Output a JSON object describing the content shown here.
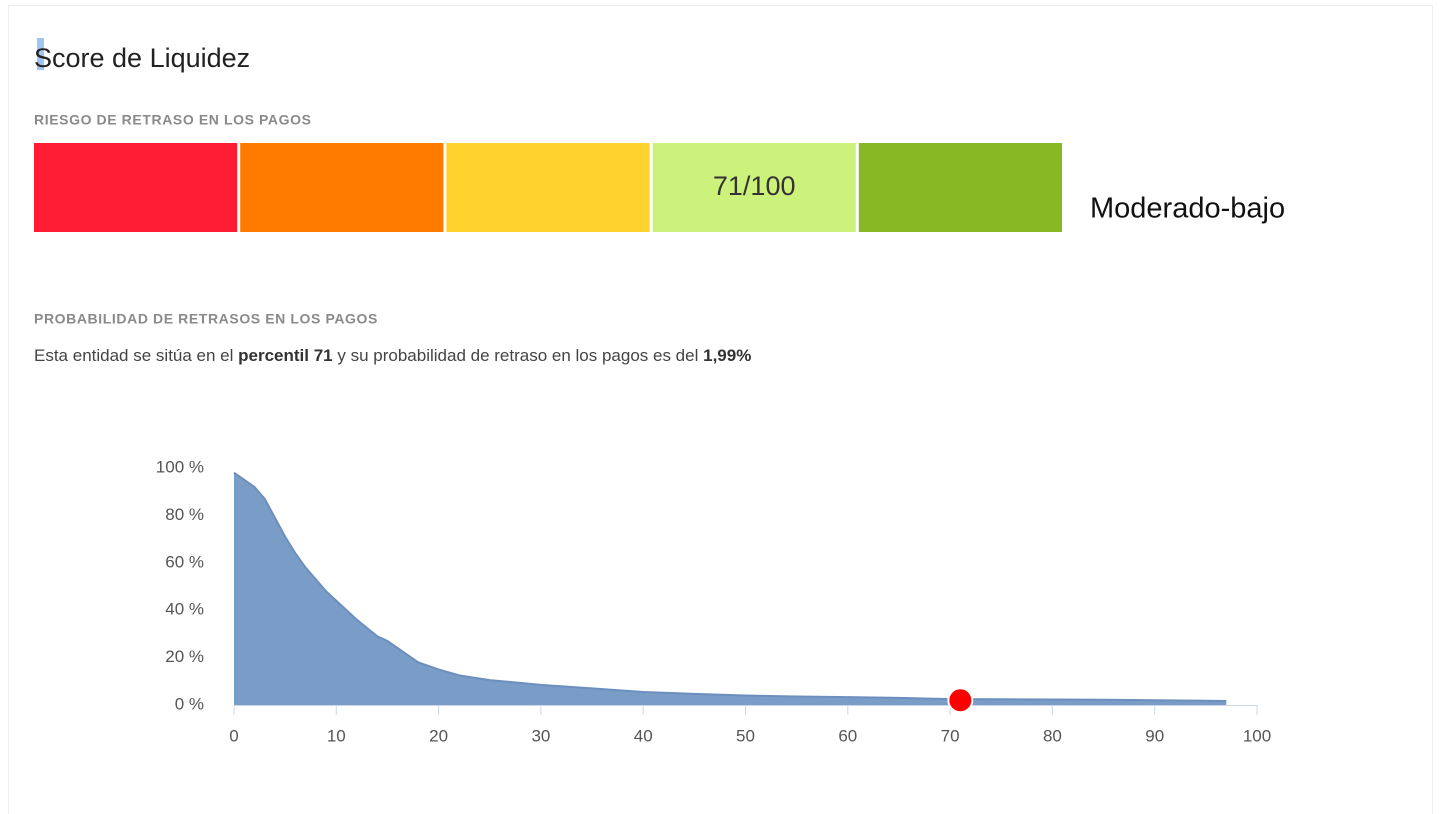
{
  "title": "Score de Liquidez",
  "risk": {
    "heading": "RIESGO DE RETRASO EN LOS PAGOS",
    "segments": [
      "#ff1c34",
      "#ff7b00",
      "#ffd22e",
      "#cdf27c",
      "#86b923"
    ],
    "score_label": "71/100",
    "score_segment": 3,
    "rating": "Moderado-bajo"
  },
  "probability": {
    "heading": "PROBABILIDAD DE RETRASOS EN LOS PAGOS",
    "sentence": [
      {
        "text": "Esta entidad se sitúa en el ",
        "bold": false
      },
      {
        "text": "percentil 71",
        "bold": true
      },
      {
        "text": " y su probabilidad de retraso en los pagos es del ",
        "bold": false
      },
      {
        "text": "1,99%",
        "bold": true
      }
    ]
  },
  "chart_data": {
    "type": "area",
    "x": [
      0,
      1,
      2,
      3,
      4,
      5,
      6,
      7,
      8,
      9,
      10,
      12,
      14,
      15,
      16,
      18,
      20,
      22,
      25,
      30,
      35,
      40,
      45,
      50,
      55,
      60,
      65,
      70,
      75,
      80,
      85,
      90,
      95,
      97
    ],
    "values": [
      98,
      95,
      92,
      87,
      79,
      71,
      64,
      58,
      53,
      48,
      44,
      36,
      29,
      27,
      24,
      18,
      15,
      12.5,
      10.5,
      8.5,
      7,
      5.5,
      4.7,
      4,
      3.6,
      3.3,
      3,
      2.5,
      2.4,
      2.3,
      2.2,
      2,
      1.8,
      1.7
    ],
    "color": "#7a9dc7",
    "marker": {
      "x": 71,
      "y": 1.99,
      "color": "#ff0000"
    },
    "xlim": [
      0,
      100
    ],
    "xticks": [
      0,
      10,
      20,
      30,
      40,
      50,
      60,
      70,
      80,
      90,
      100
    ],
    "ylim": [
      0,
      100
    ],
    "yticks": [
      {
        "value": 0,
        "label": "0 %"
      },
      {
        "value": 20,
        "label": "20 %"
      },
      {
        "value": 40,
        "label": "40 %"
      },
      {
        "value": 60,
        "label": "60 %"
      },
      {
        "value": 80,
        "label": "80 %"
      },
      {
        "value": 100,
        "label": "100 %"
      }
    ]
  }
}
